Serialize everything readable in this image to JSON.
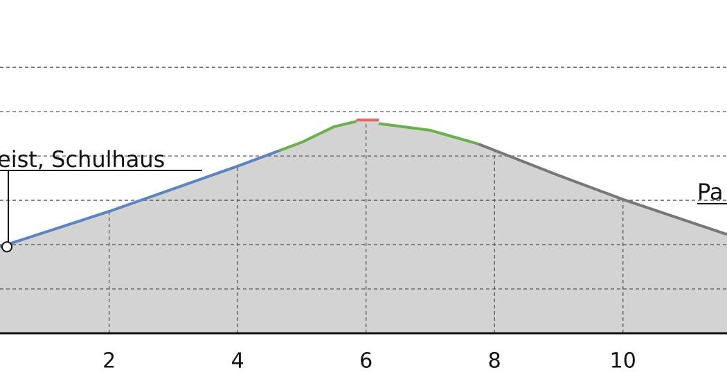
{
  "chart_data": {
    "type": "area-line",
    "xlim": [
      0.3,
      11.62
    ],
    "xticks": [
      2,
      4,
      6,
      8,
      10
    ],
    "ylim": [
      0,
      7.3
    ],
    "yticks": [
      1,
      2,
      3,
      4,
      5,
      6
    ],
    "grid": true,
    "fill": "#d3d3d3",
    "series": [
      {
        "color": "#5b84c4",
        "x": [
          0.3,
          2,
          4,
          4.65
        ],
        "values": [
          1.95,
          2.75,
          3.77,
          4.12
        ]
      },
      {
        "color": "#6ab04c",
        "x": [
          4.65,
          5,
          5.5,
          5.85
        ],
        "values": [
          4.12,
          4.31,
          4.66,
          4.78
        ]
      },
      {
        "color": "#e06666",
        "x": [
          5.85,
          6.2
        ],
        "values": [
          4.81,
          4.81
        ]
      },
      {
        "color": "#6ab04c",
        "x": [
          6.2,
          7,
          7.75
        ],
        "values": [
          4.73,
          4.58,
          4.27
        ]
      },
      {
        "color": "#777777",
        "x": [
          7.75,
          9,
          10,
          11.62
        ],
        "values": [
          4.27,
          3.56,
          3.02,
          2.23
        ]
      }
    ],
    "annotations": [
      {
        "text": "eist, Schulhaus"
      },
      {
        "text": "Pa"
      }
    ]
  }
}
